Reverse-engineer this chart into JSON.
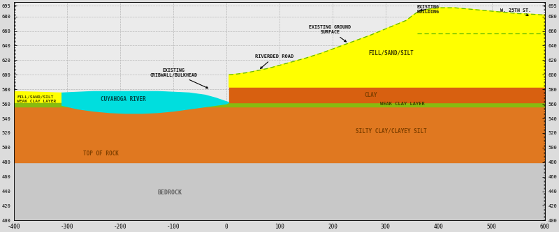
{
  "xlim": [
    -400,
    600
  ],
  "ylim": [
    400,
    700
  ],
  "xticks": [
    -400,
    -300,
    -200,
    -100,
    0,
    100,
    200,
    300,
    400,
    500,
    600
  ],
  "yticks": [
    400,
    420,
    440,
    460,
    480,
    500,
    520,
    540,
    560,
    580,
    600,
    620,
    640,
    660,
    680,
    695
  ],
  "bg_color": "#dcdcdc",
  "plot_bg_color": "#ebebeb",
  "bedrock_color": "#c8c8c8",
  "orange_main": "#e07820",
  "orange_silty": "#e88828",
  "clay_color": "#d86818",
  "weak_clay_color": "#88bb10",
  "fill_sand_color": "#ffff00",
  "river_color": "#00dede",
  "grid_color": "#bbbbbb",
  "figsize": [
    8.0,
    3.33
  ],
  "dpi": 100
}
